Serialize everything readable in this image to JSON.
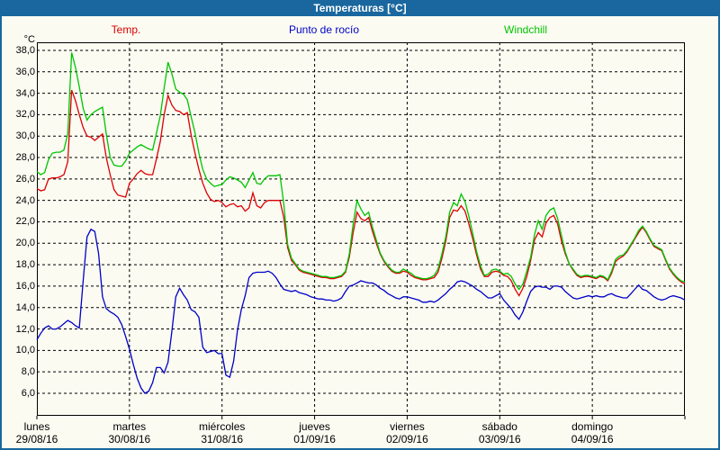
{
  "window": {
    "title": "Temperaturas [°C]"
  },
  "legend": [
    {
      "label": "Temp.",
      "color": "#dd0000"
    },
    {
      "label": "Punto de rocío",
      "color": "#0000c8"
    },
    {
      "label": "Windchill",
      "color": "#00c400"
    }
  ],
  "chart_data": {
    "type": "line",
    "title": "Temperaturas [°C]",
    "grid": "dashed",
    "legend_position": "top",
    "y_axis": {
      "unit": "°C",
      "min": 6,
      "max": 38,
      "tick_step": 2,
      "tick_labels": [
        "38,0",
        "36,0",
        "34,0",
        "32,0",
        "30,0",
        "28,0",
        "26,0",
        "24,0",
        "22,0",
        "20,0",
        "18,0",
        "16,0",
        "14,0",
        "12,0",
        "10,0",
        "8,0",
        "6,0"
      ]
    },
    "x_axis": {
      "span_hours": 168,
      "interval_hours": 1,
      "days": [
        {
          "weekday": "lunes",
          "date": "29/08/16"
        },
        {
          "weekday": "martes",
          "date": "30/08/16"
        },
        {
          "weekday": "miércoles",
          "date": "31/08/16"
        },
        {
          "weekday": "jueves",
          "date": "01/09/16"
        },
        {
          "weekday": "viernes",
          "date": "02/09/16"
        },
        {
          "weekday": "sábado",
          "date": "03/09/16"
        },
        {
          "weekday": "domingo",
          "date": "04/09/16"
        }
      ]
    },
    "series": [
      {
        "name": "Temp.",
        "color": "#dd0000",
        "values": [
          25.1,
          24.9,
          25.0,
          26.0,
          26.1,
          26.1,
          26.2,
          26.4,
          27.6,
          34.3,
          33.3,
          32.0,
          30.8,
          30.0,
          29.9,
          29.6,
          29.9,
          30.2,
          28.0,
          26.4,
          25.0,
          24.5,
          24.4,
          24.3,
          25.6,
          26.0,
          26.5,
          26.8,
          26.5,
          26.4,
          26.4,
          27.9,
          29.5,
          32.0,
          33.8,
          32.9,
          32.4,
          32.3,
          32.0,
          32.2,
          30.1,
          28.4,
          26.9,
          25.6,
          24.7,
          24.1,
          23.9,
          24.0,
          23.8,
          23.4,
          23.6,
          23.7,
          23.4,
          23.5,
          23.0,
          23.3,
          24.7,
          23.5,
          23.3,
          23.8,
          24.0,
          24.0,
          24.0,
          24.0,
          22.4,
          19.6,
          18.4,
          18.0,
          17.5,
          17.3,
          17.2,
          17.1,
          17.0,
          16.9,
          16.8,
          16.8,
          16.7,
          16.7,
          16.8,
          16.9,
          17.3,
          18.7,
          21.0,
          22.9,
          22.3,
          22.1,
          22.4,
          21.1,
          20.0,
          19.0,
          18.3,
          17.8,
          17.4,
          17.2,
          17.2,
          17.4,
          17.3,
          17.0,
          16.8,
          16.7,
          16.6,
          16.6,
          16.7,
          16.8,
          17.3,
          18.6,
          20.2,
          22.4,
          23.1,
          23.0,
          23.5,
          23.0,
          21.8,
          20.4,
          18.9,
          17.6,
          16.9,
          16.9,
          17.3,
          17.4,
          17.3,
          17.0,
          16.9,
          16.5,
          15.7,
          15.1,
          15.8,
          16.9,
          18.4,
          20.3,
          21.0,
          20.6,
          21.9,
          22.4,
          22.6,
          21.8,
          20.2,
          19.0,
          18.1,
          17.5,
          17.0,
          16.8,
          16.9,
          16.9,
          16.8,
          16.7,
          16.9,
          16.8,
          16.5,
          17.2,
          18.3,
          18.6,
          18.8,
          19.2,
          19.8,
          20.4,
          21.0,
          21.5,
          21.0,
          20.3,
          19.7,
          19.5,
          19.3,
          18.4,
          17.6,
          17.1,
          16.7,
          16.4,
          16.2
        ]
      },
      {
        "name": "Punto de rocío",
        "color": "#0000c8",
        "values": [
          11.0,
          11.6,
          12.1,
          12.3,
          12.0,
          12.0,
          12.2,
          12.5,
          12.8,
          12.6,
          12.3,
          12.1,
          16.5,
          20.6,
          21.3,
          21.1,
          19.0,
          15.0,
          13.9,
          13.6,
          13.4,
          13.1,
          12.4,
          11.3,
          10.1,
          8.7,
          7.4,
          6.5,
          6.0,
          6.2,
          7.0,
          8.4,
          8.4,
          7.9,
          8.9,
          11.8,
          15.0,
          15.8,
          15.2,
          14.7,
          13.8,
          13.6,
          13.1,
          10.3,
          9.8,
          9.9,
          10.0,
          9.7,
          9.7,
          7.7,
          7.5,
          9.0,
          11.9,
          13.8,
          15.1,
          16.8,
          17.2,
          17.3,
          17.3,
          17.3,
          17.4,
          17.2,
          16.8,
          16.2,
          15.7,
          15.6,
          15.5,
          15.6,
          15.4,
          15.3,
          15.2,
          15.0,
          14.9,
          14.8,
          14.8,
          14.7,
          14.7,
          14.6,
          14.7,
          14.9,
          15.5,
          16.0,
          16.1,
          16.3,
          16.5,
          16.4,
          16.3,
          16.3,
          16.1,
          15.8,
          15.6,
          15.3,
          15.1,
          14.9,
          14.8,
          15.0,
          15.0,
          14.9,
          14.8,
          14.7,
          14.5,
          14.5,
          14.6,
          14.5,
          14.7,
          15.0,
          15.3,
          15.7,
          16.0,
          16.4,
          16.5,
          16.4,
          16.2,
          16.0,
          15.7,
          15.5,
          15.2,
          14.9,
          14.9,
          15.1,
          15.3,
          14.7,
          14.3,
          13.9,
          13.3,
          12.9,
          13.6,
          14.6,
          15.5,
          15.9,
          16.0,
          15.9,
          15.9,
          15.7,
          16.0,
          16.0,
          15.9,
          15.5,
          15.2,
          14.9,
          14.8,
          14.9,
          15.0,
          15.1,
          15.0,
          15.1,
          15.0,
          15.0,
          15.2,
          15.3,
          15.1,
          15.0,
          14.9,
          14.9,
          15.3,
          15.7,
          16.1,
          15.7,
          15.6,
          15.3,
          15.0,
          14.8,
          14.7,
          14.8,
          15.0,
          15.1,
          15.0,
          14.9,
          14.7
        ]
      },
      {
        "name": "Windchill",
        "color": "#00c400",
        "values": [
          26.7,
          26.4,
          26.6,
          27.8,
          28.4,
          28.5,
          28.5,
          28.7,
          30.2,
          37.8,
          36.4,
          34.6,
          32.6,
          31.5,
          32.0,
          32.3,
          32.5,
          32.7,
          30.2,
          28.0,
          27.3,
          27.2,
          27.2,
          27.7,
          28.4,
          28.7,
          29.0,
          29.2,
          29.0,
          28.8,
          28.7,
          30.3,
          31.9,
          34.5,
          36.9,
          35.8,
          34.4,
          34.1,
          33.9,
          33.4,
          31.8,
          30.3,
          28.4,
          26.9,
          26.0,
          25.6,
          25.3,
          25.4,
          25.5,
          25.9,
          26.2,
          26.1,
          25.9,
          25.7,
          25.2,
          25.9,
          26.6,
          25.6,
          25.5,
          26.0,
          26.3,
          26.3,
          26.3,
          26.4,
          23.7,
          19.9,
          18.6,
          18.1,
          17.6,
          17.4,
          17.3,
          17.2,
          17.1,
          17.0,
          16.9,
          16.9,
          16.8,
          16.8,
          16.9,
          17.0,
          17.4,
          19.0,
          21.8,
          24.0,
          23.2,
          22.6,
          22.9,
          21.5,
          20.3,
          19.1,
          18.4,
          17.9,
          17.5,
          17.3,
          17.3,
          17.6,
          17.4,
          17.2,
          16.9,
          16.8,
          16.7,
          16.7,
          16.8,
          17.0,
          17.6,
          19.0,
          20.6,
          22.9,
          23.8,
          23.5,
          24.6,
          23.9,
          22.5,
          20.9,
          19.2,
          17.9,
          17.0,
          17.1,
          17.5,
          17.6,
          17.4,
          17.1,
          17.2,
          16.9,
          16.2,
          15.7,
          16.2,
          17.4,
          18.7,
          20.8,
          22.1,
          21.3,
          22.6,
          23.1,
          23.3,
          22.3,
          20.7,
          19.2,
          18.1,
          17.6,
          17.1,
          16.9,
          17.0,
          17.0,
          16.9,
          16.8,
          17.0,
          16.9,
          16.6,
          17.4,
          18.5,
          18.8,
          18.9,
          19.3,
          19.9,
          20.5,
          21.2,
          21.6,
          21.1,
          20.4,
          19.8,
          19.6,
          19.4,
          18.5,
          17.7,
          17.2,
          16.8,
          16.5,
          16.4
        ]
      }
    ]
  }
}
